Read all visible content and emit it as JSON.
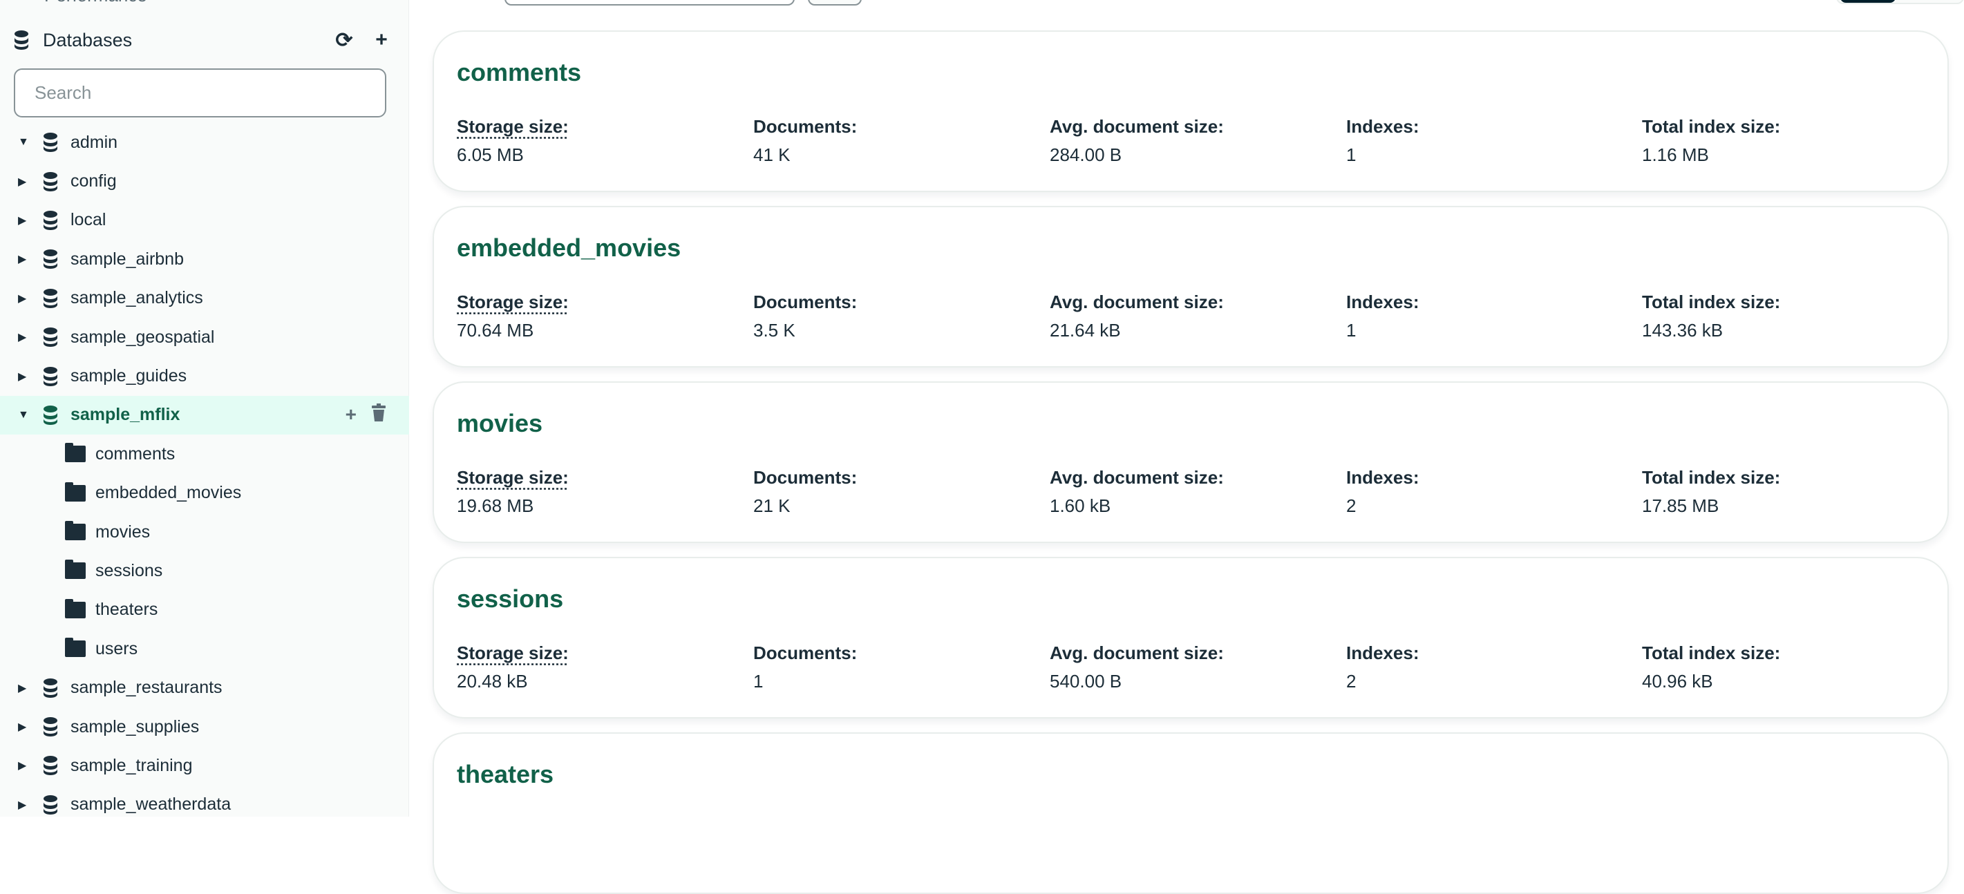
{
  "sidebar": {
    "performance_label": "Performance",
    "databases_label": "Databases",
    "search_placeholder": "Search",
    "databases": [
      {
        "name": "admin",
        "expanded": true
      },
      {
        "name": "config"
      },
      {
        "name": "local"
      },
      {
        "name": "sample_airbnb"
      },
      {
        "name": "sample_analytics"
      },
      {
        "name": "sample_geospatial"
      },
      {
        "name": "sample_guides"
      },
      {
        "name": "sample_mflix",
        "expanded": true,
        "selected": true,
        "collections": [
          "comments",
          "embedded_movies",
          "movies",
          "sessions",
          "theaters",
          "users"
        ]
      },
      {
        "name": "sample_restaurants"
      },
      {
        "name": "sample_supplies"
      },
      {
        "name": "sample_training"
      },
      {
        "name": "sample_weatherdata"
      }
    ]
  },
  "labels": {
    "storage": "Storage size:",
    "documents": "Documents:",
    "avg": "Avg. document size:",
    "indexes": "Indexes:",
    "total_index": "Total index size:"
  },
  "collections": [
    {
      "name": "comments",
      "storage": "6.05 MB",
      "documents": "41 K",
      "avg": "284.00 B",
      "indexes": "1",
      "total_index": "1.16 MB"
    },
    {
      "name": "embedded_movies",
      "storage": "70.64 MB",
      "documents": "3.5 K",
      "avg": "21.64 kB",
      "indexes": "1",
      "total_index": "143.36 kB"
    },
    {
      "name": "movies",
      "storage": "19.68 MB",
      "documents": "21 K",
      "avg": "1.60 kB",
      "indexes": "2",
      "total_index": "17.85 MB"
    },
    {
      "name": "sessions",
      "storage": "20.48 kB",
      "documents": "1",
      "avg": "540.00 B",
      "indexes": "2",
      "total_index": "40.96 kB"
    },
    {
      "name": "theaters"
    }
  ],
  "colors": {
    "accent": "#116149",
    "selected_bg": "#e3fcf4"
  }
}
